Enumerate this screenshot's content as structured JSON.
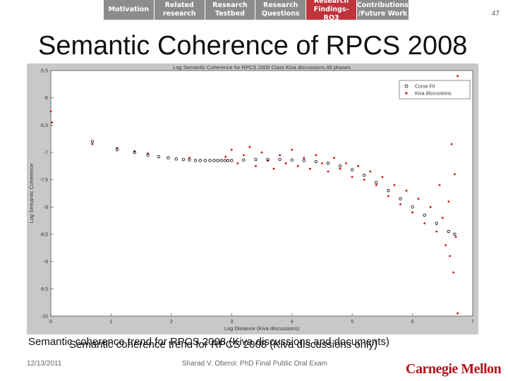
{
  "nav": {
    "tabs": [
      {
        "label": "Motivation",
        "active": false
      },
      {
        "label": "Related\nresearch",
        "active": false
      },
      {
        "label": "Research\nTestbed",
        "active": false
      },
      {
        "label": "Research\nQuestions",
        "active": false
      },
      {
        "label": "Research\nFindings-RQ3",
        "active": true
      },
      {
        "label": "Contributions\n/Future Work",
        "active": false
      }
    ]
  },
  "page_number": "47",
  "slide_title": "Semantic Coherence of RPCS 2008",
  "caption": {
    "line1": "Semantic coherence trend for RPCS 2008 (Kiva discussions and documents)",
    "line2": "Semantic coherence trend for RPCS 2008 (Kiva discussions only)"
  },
  "footer": {
    "date": "12/13/2011",
    "text": "Sharad V. Oberoi: PhD Final Public Oral Exam",
    "logo": "Carnegie Mellon"
  },
  "colors": {
    "nav_inactive": "#8c8c8c",
    "nav_active": "#c0343b",
    "chart_background": "#c8c8c8",
    "series_points": "#cc1111",
    "curve_fit": "#000000",
    "logo": "#b5121b"
  },
  "chart_data": {
    "type": "scatter",
    "title": "Log Semantic Coherence for RPCS 2008 Class Kiva discussions All phases",
    "xlabel": "Log Distance (Kiva discussions)",
    "ylabel": "Log Semantic Coherence",
    "xlim": [
      0,
      7
    ],
    "ylim": [
      -10,
      -5.5
    ],
    "xticks": [
      0,
      1,
      2,
      3,
      4,
      5,
      6,
      7
    ],
    "yticks": [
      -5.5,
      -6,
      -6.5,
      -7,
      -7.5,
      -8,
      -8.5,
      -9,
      -9.5,
      -10
    ],
    "ytick_labels": [
      "-5.5",
      "-6",
      "-6.5",
      "-7",
      "-7.5",
      "-8",
      "-8.5",
      "-9",
      "-9.5",
      "-10"
    ],
    "legend_position": "top-right",
    "grid": false,
    "series": [
      {
        "name": "Curve Fit",
        "marker": "circle",
        "color": "#000000",
        "points": [
          [
            0.69,
            -6.8
          ],
          [
            1.1,
            -6.95
          ],
          [
            1.39,
            -7.0
          ],
          [
            1.61,
            -7.05
          ],
          [
            1.79,
            -7.08
          ],
          [
            1.95,
            -7.1
          ],
          [
            2.08,
            -7.12
          ],
          [
            2.2,
            -7.13
          ],
          [
            2.3,
            -7.14
          ],
          [
            2.4,
            -7.15
          ],
          [
            2.48,
            -7.15
          ],
          [
            2.56,
            -7.15
          ],
          [
            2.64,
            -7.15
          ],
          [
            2.71,
            -7.15
          ],
          [
            2.77,
            -7.15
          ],
          [
            2.83,
            -7.15
          ],
          [
            2.89,
            -7.15
          ],
          [
            2.94,
            -7.15
          ],
          [
            3.0,
            -7.15
          ],
          [
            3.2,
            -7.14
          ],
          [
            3.4,
            -7.13
          ],
          [
            3.6,
            -7.13
          ],
          [
            3.8,
            -7.13
          ],
          [
            4.0,
            -7.14
          ],
          [
            4.2,
            -7.15
          ],
          [
            4.4,
            -7.17
          ],
          [
            4.6,
            -7.2
          ],
          [
            4.8,
            -7.25
          ],
          [
            5.0,
            -7.32
          ],
          [
            5.2,
            -7.42
          ],
          [
            5.4,
            -7.55
          ],
          [
            5.6,
            -7.7
          ],
          [
            5.8,
            -7.85
          ],
          [
            6.0,
            -8.0
          ],
          [
            6.2,
            -8.15
          ],
          [
            6.4,
            -8.3
          ],
          [
            6.6,
            -8.45
          ],
          [
            6.7,
            -8.5
          ]
        ]
      },
      {
        "name": "Kiva discussions",
        "marker": "dot",
        "color": "#cc1111",
        "points": [
          [
            0.0,
            -6.25
          ],
          [
            0.02,
            -6.45
          ],
          [
            0.69,
            -6.85
          ],
          [
            1.1,
            -6.92
          ],
          [
            1.39,
            -6.98
          ],
          [
            1.61,
            -7.02
          ],
          [
            2.3,
            -7.1
          ],
          [
            2.9,
            -7.08
          ],
          [
            3.0,
            -6.95
          ],
          [
            3.1,
            -7.2
          ],
          [
            3.2,
            -7.05
          ],
          [
            3.3,
            -6.9
          ],
          [
            3.4,
            -7.25
          ],
          [
            3.5,
            -7.0
          ],
          [
            3.6,
            -7.15
          ],
          [
            3.7,
            -7.3
          ],
          [
            3.8,
            -7.05
          ],
          [
            3.9,
            -7.2
          ],
          [
            4.0,
            -6.95
          ],
          [
            4.1,
            -7.25
          ],
          [
            4.2,
            -7.1
          ],
          [
            4.3,
            -7.3
          ],
          [
            4.4,
            -7.05
          ],
          [
            4.5,
            -7.2
          ],
          [
            4.6,
            -7.35
          ],
          [
            4.7,
            -7.1
          ],
          [
            4.8,
            -7.3
          ],
          [
            4.9,
            -7.2
          ],
          [
            5.0,
            -7.45
          ],
          [
            5.1,
            -7.25
          ],
          [
            5.2,
            -7.5
          ],
          [
            5.3,
            -7.35
          ],
          [
            5.4,
            -7.6
          ],
          [
            5.5,
            -7.45
          ],
          [
            5.6,
            -7.8
          ],
          [
            5.7,
            -7.6
          ],
          [
            5.8,
            -7.95
          ],
          [
            5.9,
            -7.7
          ],
          [
            6.0,
            -8.1
          ],
          [
            6.1,
            -7.85
          ],
          [
            6.2,
            -8.3
          ],
          [
            6.3,
            -8.0
          ],
          [
            6.4,
            -8.45
          ],
          [
            6.45,
            -7.6
          ],
          [
            6.5,
            -8.2
          ],
          [
            6.55,
            -8.7
          ],
          [
            6.6,
            -7.9
          ],
          [
            6.62,
            -8.9
          ],
          [
            6.65,
            -6.85
          ],
          [
            6.68,
            -9.2
          ],
          [
            6.7,
            -7.4
          ],
          [
            6.72,
            -8.55
          ],
          [
            6.75,
            -5.6
          ],
          [
            6.75,
            -9.95
          ]
        ]
      }
    ]
  }
}
